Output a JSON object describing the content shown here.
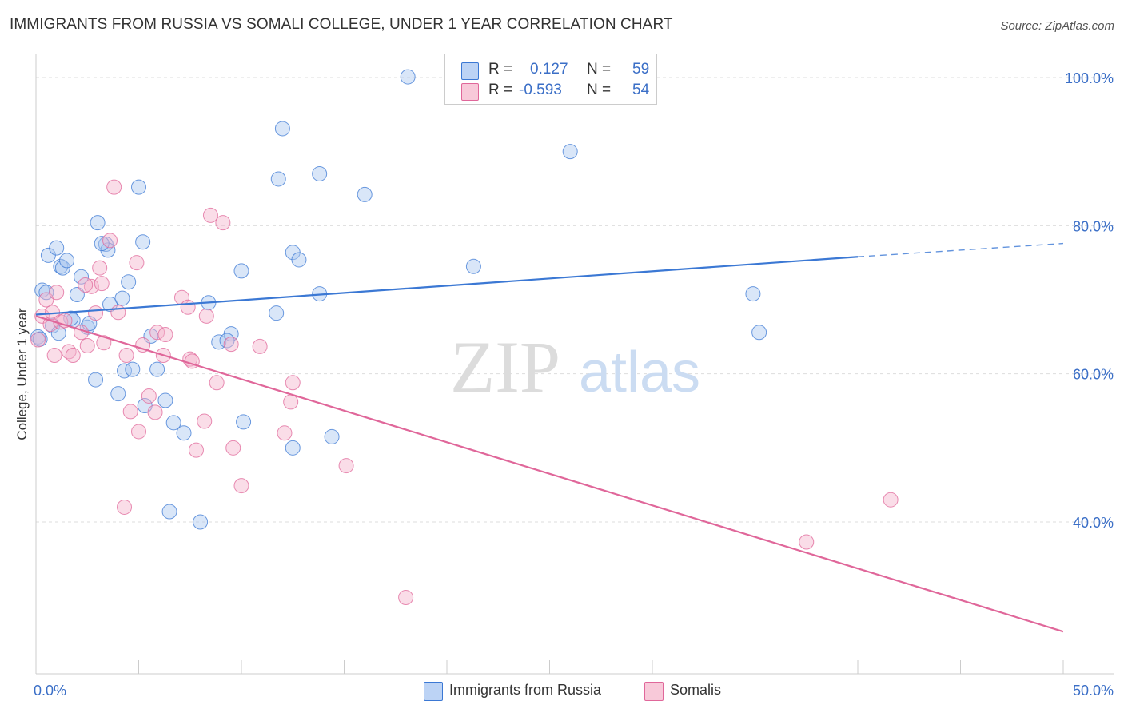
{
  "title": "IMMIGRANTS FROM RUSSIA VS SOMALI COLLEGE, UNDER 1 YEAR CORRELATION CHART",
  "source": "Source: ZipAtlas.com",
  "watermark": {
    "zip": "ZIP",
    "atlas": "atlas"
  },
  "colors": {
    "blue": "#3b78d4",
    "blue_fill": "#aac8f0",
    "pink": "#e0679a",
    "pink_fill": "#f4b4cb",
    "axis_text": "#3b6fc7"
  },
  "legend": {
    "rows": [
      {
        "r_label": "R =",
        "r_value": "0.127",
        "n_label": "N =",
        "n_value": "59"
      },
      {
        "r_label": "R =",
        "r_value": "-0.593",
        "n_label": "N =",
        "n_value": "54"
      }
    ]
  },
  "bottom_legend": {
    "series1": "Immigrants from Russia",
    "series2": "Somalis"
  },
  "chart_data": {
    "type": "scatter",
    "xlabel": "",
    "ylabel": "College, Under 1 year",
    "xlim": [
      0,
      50
    ],
    "ylim": [
      20,
      102
    ],
    "x_tick_labels": [
      "0.0%",
      "50.0%"
    ],
    "y_tick_labels": [
      "100.0%",
      "80.0%",
      "60.0%",
      "40.0%"
    ],
    "y_ticks": [
      100,
      80,
      60,
      40
    ],
    "x_ticks": [
      0,
      5,
      10,
      15,
      20,
      25,
      30,
      35,
      40,
      45,
      50
    ],
    "grid": true,
    "series": [
      {
        "name": "Immigrants from Russia",
        "trend": {
          "x0": 0,
          "y0": 68.0,
          "x1": 40,
          "y1": 75.8,
          "dash_x1": 50,
          "dash_y1": 77.6
        },
        "points": [
          [
            0.1,
            65.0
          ],
          [
            0.3,
            71.3
          ],
          [
            0.6,
            76.0
          ],
          [
            0.8,
            66.5
          ],
          [
            1.0,
            77.0
          ],
          [
            1.1,
            65.5
          ],
          [
            1.2,
            74.5
          ],
          [
            1.3,
            74.3
          ],
          [
            1.5,
            75.3
          ],
          [
            1.8,
            67.2
          ],
          [
            2.0,
            70.7
          ],
          [
            2.2,
            73.1
          ],
          [
            2.5,
            66.3
          ],
          [
            2.6,
            66.8
          ],
          [
            2.9,
            59.2
          ],
          [
            3.0,
            80.4
          ],
          [
            3.4,
            77.5
          ],
          [
            3.5,
            76.7
          ],
          [
            3.6,
            69.4
          ],
          [
            4.0,
            57.3
          ],
          [
            4.2,
            70.2
          ],
          [
            4.3,
            60.4
          ],
          [
            4.5,
            72.4
          ],
          [
            4.7,
            60.6
          ],
          [
            5.0,
            85.2
          ],
          [
            5.2,
            77.8
          ],
          [
            5.3,
            55.7
          ],
          [
            5.6,
            65.1
          ],
          [
            5.9,
            60.6
          ],
          [
            6.3,
            56.4
          ],
          [
            6.7,
            53.4
          ],
          [
            7.2,
            52.0
          ],
          [
            6.5,
            41.4
          ],
          [
            8.0,
            40.0
          ],
          [
            8.4,
            69.6
          ],
          [
            8.9,
            64.3
          ],
          [
            9.5,
            65.4
          ],
          [
            9.3,
            64.5
          ],
          [
            10.0,
            73.9
          ],
          [
            10.1,
            53.5
          ],
          [
            11.7,
            68.2
          ],
          [
            11.8,
            86.3
          ],
          [
            12.0,
            93.1
          ],
          [
            12.5,
            76.4
          ],
          [
            12.8,
            75.4
          ],
          [
            12.5,
            50.0
          ],
          [
            13.8,
            87.0
          ],
          [
            13.8,
            70.8
          ],
          [
            14.4,
            51.5
          ],
          [
            16.0,
            84.2
          ],
          [
            18.1,
            100.1
          ],
          [
            21.3,
            74.5
          ],
          [
            26.0,
            90.0
          ],
          [
            34.9,
            70.8
          ],
          [
            35.2,
            65.6
          ],
          [
            0.5,
            71.0
          ],
          [
            0.2,
            64.7
          ],
          [
            1.7,
            67.5
          ],
          [
            3.2,
            77.6
          ]
        ]
      },
      {
        "name": "Somalis",
        "trend": {
          "x0": 0,
          "y0": 67.8,
          "x1": 50,
          "y1": 25.2
        },
        "points": [
          [
            0.1,
            64.6
          ],
          [
            0.3,
            67.8
          ],
          [
            0.5,
            70.0
          ],
          [
            0.7,
            66.7
          ],
          [
            0.8,
            68.3
          ],
          [
            0.9,
            62.5
          ],
          [
            1.0,
            71.0
          ],
          [
            1.2,
            67.0
          ],
          [
            1.6,
            63.0
          ],
          [
            1.8,
            62.5
          ],
          [
            2.2,
            65.6
          ],
          [
            2.5,
            63.8
          ],
          [
            2.7,
            71.8
          ],
          [
            2.9,
            68.2
          ],
          [
            3.1,
            74.3
          ],
          [
            3.2,
            72.2
          ],
          [
            3.3,
            64.2
          ],
          [
            3.6,
            78.0
          ],
          [
            3.8,
            85.2
          ],
          [
            4.0,
            68.3
          ],
          [
            4.3,
            42.0
          ],
          [
            4.4,
            62.5
          ],
          [
            4.6,
            54.9
          ],
          [
            4.9,
            75.0
          ],
          [
            5.0,
            52.2
          ],
          [
            5.2,
            63.9
          ],
          [
            5.5,
            57.0
          ],
          [
            5.8,
            54.8
          ],
          [
            5.9,
            65.6
          ],
          [
            6.2,
            62.5
          ],
          [
            6.3,
            65.3
          ],
          [
            7.1,
            70.3
          ],
          [
            7.4,
            69.0
          ],
          [
            7.5,
            62.0
          ],
          [
            7.6,
            61.7
          ],
          [
            7.8,
            49.7
          ],
          [
            8.2,
            53.6
          ],
          [
            8.3,
            67.8
          ],
          [
            8.5,
            81.4
          ],
          [
            8.8,
            58.8
          ],
          [
            9.1,
            80.4
          ],
          [
            9.5,
            64.0
          ],
          [
            9.6,
            50.0
          ],
          [
            10.0,
            44.9
          ],
          [
            10.9,
            63.7
          ],
          [
            12.1,
            52.0
          ],
          [
            12.4,
            56.2
          ],
          [
            12.5,
            58.8
          ],
          [
            15.1,
            47.6
          ],
          [
            18.0,
            29.8
          ],
          [
            37.5,
            37.3
          ],
          [
            41.6,
            43.0
          ],
          [
            2.4,
            72.0
          ],
          [
            1.4,
            67.2
          ]
        ]
      }
    ]
  }
}
